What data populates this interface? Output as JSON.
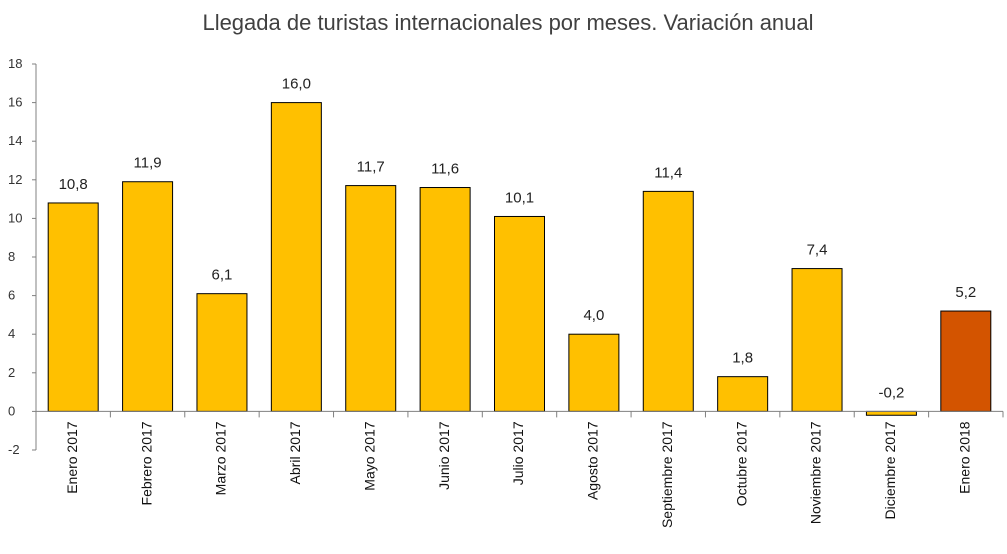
{
  "chart_data": {
    "type": "bar",
    "title": "Llegada de turistas internacionales por meses. Variación anual",
    "xlabel": "",
    "ylabel": "",
    "ylim": [
      -2,
      18
    ],
    "yticks": [
      -2,
      0,
      2,
      4,
      6,
      8,
      10,
      12,
      14,
      16,
      18
    ],
    "categories": [
      "Enero 2017",
      "Febrero 2017",
      "Marzo 2017",
      "Abril 2017",
      "Mayo 2017",
      "Junio 2017",
      "Julio 2017",
      "Agosto 2017",
      "Septiembre 2017",
      "Octubre 2017",
      "Noviembre 2017",
      "Diciembre 2017",
      "Enero 2018"
    ],
    "values": [
      10.8,
      11.9,
      6.1,
      16.0,
      11.7,
      11.6,
      10.1,
      4.0,
      11.4,
      1.8,
      7.4,
      -0.2,
      5.2
    ],
    "value_labels": [
      "10,8",
      "11,9",
      "6,1",
      "16,0",
      "11,7",
      "11,6",
      "10,1",
      "4,0",
      "11,4",
      "1,8",
      "7,4",
      "-0,2",
      "5,2"
    ],
    "grid": false,
    "legend": "none",
    "colors": {
      "bar": "#FFC000",
      "highlight": "#D35400",
      "bar_outline": "#000000"
    },
    "highlight_index": 12
  }
}
